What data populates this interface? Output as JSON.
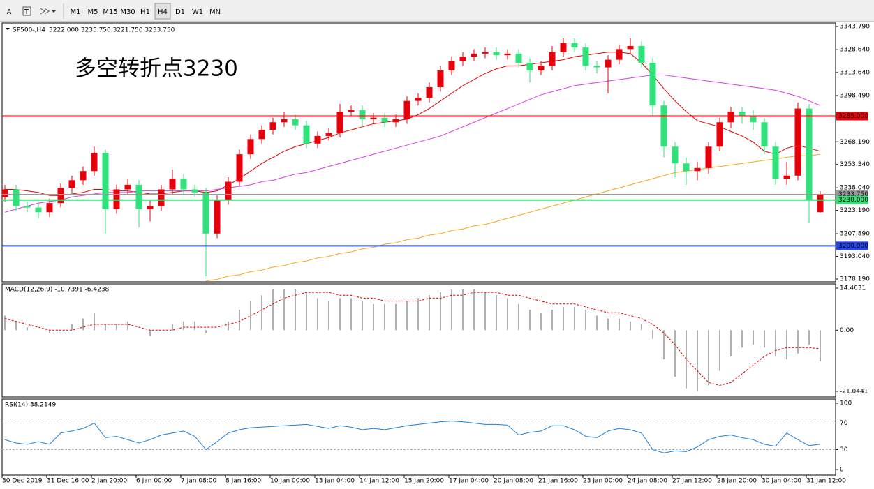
{
  "toolbar": {
    "tools": [
      "A",
      "T"
    ],
    "timeframes": [
      "M1",
      "M5",
      "M15",
      "M30",
      "H1",
      "H4",
      "D1",
      "W1",
      "MN"
    ],
    "active": 5
  },
  "chart_data": [
    {
      "type": "candlestick",
      "symbol": "SP500-,H4",
      "ohlc_label": "3222.000 3235.750 3221.750 3233.750",
      "annotation": "多空转折点3230",
      "categories": [
        "30 Dec 2019",
        null,
        null,
        null,
        "31 Dec 16:00",
        null,
        null,
        null,
        "2 Jan 20:00",
        null,
        null,
        null,
        "6 Jan 00:00",
        null,
        null,
        null,
        "7 Jan 08:00",
        null,
        null,
        null,
        "8 Jan 16:00",
        null,
        null,
        null,
        "10 Jan 00:00",
        null,
        null,
        null,
        "13 Jan 04:00",
        null,
        null,
        null,
        "14 Jan 12:00",
        null,
        null,
        null,
        "15 Jan 20:00",
        null,
        null,
        null,
        "17 Jan 04:00",
        null,
        null,
        null,
        "20 Jan 08:00",
        null,
        null,
        null,
        "21 Jan 16:00",
        null,
        null,
        null,
        "23 Jan 00:00",
        null,
        null,
        null,
        "24 Jan 08:00",
        null,
        null,
        null,
        "27 Jan 12:00",
        null,
        null,
        null,
        "28 Jan 20:00",
        null,
        null,
        null,
        "30 Jan 04:00",
        null,
        null,
        null,
        "31 Jan 12:00",
        null
      ],
      "open": [
        3232,
        3237,
        3226,
        3225,
        3222,
        3228,
        3238,
        3243,
        3249,
        3261,
        3224,
        3237,
        3240,
        3224,
        3226,
        3237,
        3244,
        3237,
        3235,
        3208,
        3230,
        3242,
        3260,
        3270,
        3276,
        3281,
        3283,
        3279,
        3267,
        3272,
        3274,
        3288,
        3289,
        3283,
        3284,
        3281,
        3283,
        3295,
        3297,
        3304,
        3315,
        3321,
        3324,
        3326,
        3327,
        3325,
        3326,
        3320,
        3315,
        3318,
        3327,
        3333,
        3330,
        3318,
        3317,
        3322,
        3329,
        3331,
        3320,
        3292,
        3265,
        3254,
        3249,
        3251,
        3265,
        3281,
        3288,
        3285,
        3281,
        3265,
        3244,
        3246,
        3290,
        3222
      ],
      "high": [
        3240,
        3240,
        3229,
        3228,
        3231,
        3241,
        3246,
        3252,
        3265,
        3263,
        3240,
        3244,
        3243,
        3230,
        3240,
        3250,
        3247,
        3240,
        3238,
        3233,
        3245,
        3263,
        3273,
        3279,
        3284,
        3288,
        3286,
        3282,
        3275,
        3277,
        3293,
        3292,
        3292,
        3287,
        3287,
        3286,
        3298,
        3300,
        3307,
        3318,
        3324,
        3327,
        3329,
        3330,
        3330,
        3329,
        3329,
        3323,
        3321,
        3331,
        3336,
        3336,
        3333,
        3321,
        3325,
        3332,
        3336,
        3334,
        3323,
        3295,
        3268,
        3258,
        3255,
        3268,
        3284,
        3291,
        3291,
        3289,
        3284,
        3268,
        3255,
        3294,
        3293,
        3235.75
      ],
      "low": [
        3229,
        3223,
        3222,
        3218,
        3219,
        3225,
        3235,
        3240,
        3246,
        3208,
        3221,
        3234,
        3212,
        3216,
        3223,
        3234,
        3234,
        3232,
        3180,
        3205,
        3227,
        3239,
        3257,
        3267,
        3273,
        3278,
        3276,
        3264,
        3264,
        3269,
        3271,
        3285,
        3278,
        3280,
        3278,
        3278,
        3280,
        3292,
        3294,
        3301,
        3312,
        3318,
        3321,
        3323,
        3322,
        3322,
        3317,
        3307,
        3312,
        3315,
        3324,
        3327,
        3315,
        3313,
        3300,
        3319,
        3326,
        3317,
        3285,
        3258,
        3245,
        3240,
        3243,
        3247,
        3262,
        3277,
        3280,
        3276,
        3260,
        3240,
        3240,
        3243,
        3215,
        3221.75
      ],
      "close": [
        3237,
        3226,
        3225,
        3222,
        3228,
        3238,
        3243,
        3249,
        3261,
        3224,
        3237,
        3240,
        3224,
        3226,
        3237,
        3244,
        3237,
        3235,
        3208,
        3230,
        3242,
        3260,
        3270,
        3276,
        3281,
        3283,
        3279,
        3267,
        3272,
        3274,
        3288,
        3289,
        3283,
        3284,
        3281,
        3283,
        3295,
        3297,
        3304,
        3315,
        3321,
        3324,
        3326,
        3327,
        3325,
        3326,
        3320,
        3315,
        3318,
        3327,
        3333,
        3330,
        3318,
        3317,
        3322,
        3329,
        3331,
        3320,
        3292,
        3265,
        3254,
        3249,
        3251,
        3265,
        3281,
        3288,
        3285,
        3281,
        3265,
        3244,
        3246,
        3290,
        3230,
        3233.75
      ],
      "up_color": "#e8000b",
      "down_color": "#2fe37a",
      "lines": [
        {
          "color": "#e00000",
          "values": [
            3237,
            3237,
            3236,
            3235,
            3233,
            3233,
            3234,
            3235,
            3237,
            3237,
            3236,
            3236,
            3235,
            3234,
            3234,
            3235,
            3236,
            3236,
            3235,
            3236,
            3240,
            3244,
            3249,
            3254,
            3258,
            3262,
            3265,
            3267,
            3269,
            3271,
            3274,
            3276,
            3278,
            3280,
            3281,
            3282,
            3283,
            3286,
            3290,
            3295,
            3300,
            3305,
            3309,
            3313,
            3316,
            3318,
            3318,
            3319,
            3320,
            3321,
            3322,
            3324,
            3325,
            3326,
            3327,
            3327,
            3326,
            3320,
            3312,
            3303,
            3295,
            3288,
            3282,
            3280,
            3278,
            3275,
            3272,
            3268,
            3262,
            3260,
            3264,
            3266,
            3264,
            3262
          ]
        },
        {
          "color": "#d43fe0",
          "values": [
            3222,
            3224,
            3226,
            3228,
            3229,
            3230,
            3232,
            3233,
            3234,
            3235,
            3235,
            3235,
            3236,
            3236,
            3236,
            3236,
            3236,
            3236,
            3236,
            3237,
            3238,
            3239,
            3240,
            3242,
            3243,
            3245,
            3247,
            3248,
            3250,
            3252,
            3254,
            3256,
            3258,
            3260,
            3262,
            3264,
            3266,
            3268,
            3270,
            3272,
            3275,
            3278,
            3281,
            3284,
            3287,
            3290,
            3293,
            3296,
            3299,
            3301,
            3303,
            3305,
            3306,
            3307,
            3308,
            3309,
            3310,
            3311,
            3312,
            3312,
            3311,
            3310,
            3309,
            3308,
            3307,
            3306,
            3305,
            3304,
            3303,
            3302,
            3300,
            3298,
            3295,
            3292
          ]
        },
        {
          "color": "#f5a623",
          "values": [
            null,
            null,
            null,
            null,
            null,
            null,
            null,
            null,
            null,
            null,
            null,
            null,
            null,
            null,
            null,
            null,
            null,
            null,
            3177,
            3178,
            3180,
            3181,
            3183,
            3184,
            3186,
            3187,
            3189,
            3190,
            3192,
            3193,
            3195,
            3196,
            3198,
            3199,
            3201,
            3202,
            3204,
            3205,
            3207,
            3208,
            3210,
            3211,
            3213,
            3214,
            3216,
            3218,
            3220,
            3222,
            3224,
            3226,
            3228,
            3230,
            3232,
            3234,
            3236,
            3238,
            3240,
            3242,
            3244,
            3246,
            3248,
            3249,
            3250,
            3251,
            3252,
            3253,
            3254,
            3255,
            3256,
            3257,
            3258,
            3259,
            3259,
            3260
          ]
        }
      ],
      "levels": [
        {
          "value": 3285,
          "label": "3285.000",
          "color": "#e8000b"
        },
        {
          "value": 3233.75,
          "label": "3233.750",
          "color": "#9a9a9a"
        },
        {
          "value": 3230,
          "label": "3230.000",
          "color": "#39e079"
        },
        {
          "value": 3200,
          "label": "3200.000",
          "color": "#2946e6"
        }
      ],
      "ylim": [
        3176.36,
        3346.08
      ],
      "yticks": [
        {
          "value": 3343.79,
          "label": "3343.790"
        },
        {
          "value": 3328.64,
          "label": "3328.640"
        },
        {
          "value": 3313.64,
          "label": "3313.640"
        },
        {
          "value": 3298.49,
          "label": "3298.490"
        },
        {
          "value": 3268.19,
          "label": "3268.190"
        },
        {
          "value": 3253.34,
          "label": "3253.340"
        },
        {
          "value": 3238.04,
          "label": "3238.040"
        },
        {
          "value": 3223.19,
          "label": "3223.190"
        },
        {
          "value": 3207.89,
          "label": "3207.890"
        },
        {
          "value": 3193.04,
          "label": "3193.040"
        },
        {
          "value": 3178.19,
          "label": "3178.190"
        }
      ]
    },
    {
      "type": "macd",
      "label": "MACD(12,26,9) -10.7391 -6.4238",
      "color": "#b0b0b0",
      "signal_color": "#e00000",
      "values": [
        5,
        3,
        1,
        0,
        -1,
        0,
        2,
        4,
        6,
        2,
        2,
        3,
        0,
        -2,
        0,
        2,
        3,
        3,
        -1,
        0,
        3,
        7,
        10,
        12,
        14,
        14,
        14,
        13,
        11,
        10,
        11,
        11,
        10,
        9,
        9,
        9,
        10,
        11,
        12,
        13,
        14,
        14,
        14,
        13,
        12,
        11,
        9,
        7,
        6,
        7,
        8,
        8,
        7,
        5,
        4,
        4,
        3,
        2,
        -3,
        -10,
        -16,
        -20,
        -21,
        -19,
        -14,
        -9,
        -6,
        -5,
        -6,
        -9,
        -10,
        -8,
        -5,
        -10.7391
      ],
      "signal": [
        4,
        3,
        2,
        1,
        0,
        0,
        0,
        1,
        2,
        2,
        2,
        2,
        1,
        0,
        0,
        0,
        1,
        1,
        1,
        1,
        2,
        3,
        5,
        7,
        9,
        11,
        12,
        13,
        13,
        13,
        12,
        12,
        11,
        11,
        10,
        10,
        10,
        10,
        11,
        11,
        12,
        12,
        13,
        13,
        13,
        12,
        12,
        11,
        10,
        9,
        9,
        9,
        8,
        7,
        6,
        6,
        5,
        4,
        2,
        -1,
        -5,
        -10,
        -14,
        -18,
        -19,
        -18,
        -15,
        -12,
        -9,
        -7,
        -6,
        -6,
        -6,
        -6.4238
      ],
      "ylim": [
        -22.96,
        15.9
      ],
      "yticks": [
        14.4631,
        {
          "value": 0,
          "label": "0.00"
        },
        -21.0441
      ]
    },
    {
      "type": "line",
      "label": "RSI(14) 38.2149",
      "color": "#1e7fd8",
      "values": [
        45,
        40,
        38,
        42,
        38,
        55,
        58,
        62,
        70,
        48,
        50,
        45,
        40,
        45,
        52,
        55,
        58,
        50,
        30,
        42,
        55,
        60,
        63,
        64,
        65,
        66,
        67,
        68,
        65,
        62,
        66,
        64,
        60,
        62,
        60,
        63,
        66,
        68,
        70,
        72,
        73,
        72,
        70,
        68,
        68,
        67,
        52,
        56,
        58,
        66,
        66,
        60,
        50,
        48,
        58,
        62,
        60,
        55,
        30,
        25,
        28,
        27,
        34,
        45,
        50,
        52,
        48,
        45,
        38,
        35,
        55,
        45,
        36,
        38.2149
      ],
      "ylim": [
        -8.4,
        106.3
      ],
      "yticks": [
        100,
        70,
        30,
        0
      ],
      "grid_levels": [
        70,
        30
      ]
    }
  ]
}
